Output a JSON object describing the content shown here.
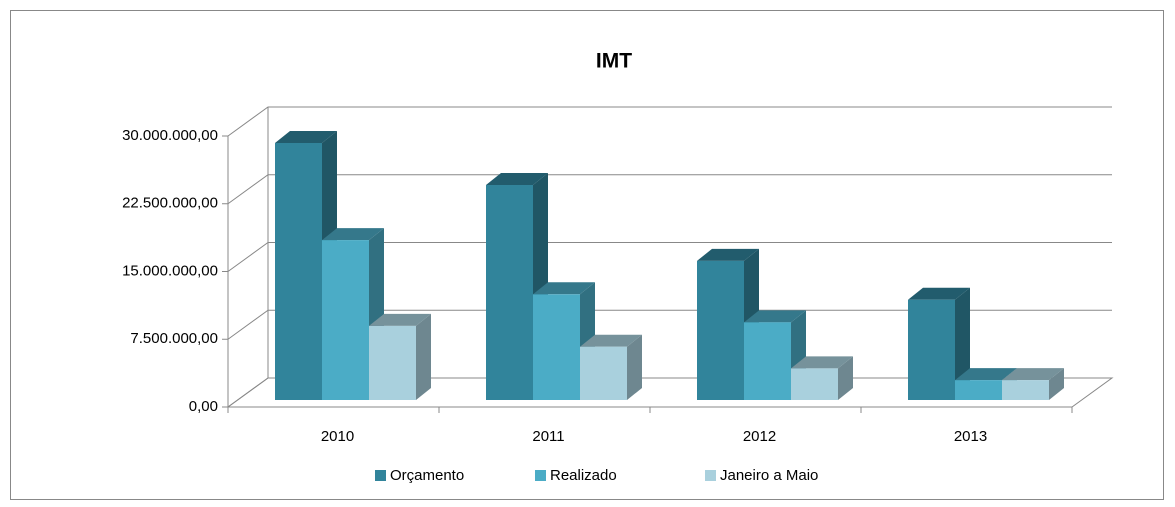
{
  "chart_data": {
    "type": "bar3d",
    "title": "IMT",
    "categories": [
      "2010",
      "2011",
      "2012",
      "2013"
    ],
    "series": [
      {
        "name": "Orçamento",
        "color": "#31849b",
        "values": [
          28450000,
          23800000,
          15400000,
          11100000
        ]
      },
      {
        "name": "Realizado",
        "color": "#4bacc6",
        "values": [
          17700000,
          11700000,
          8600000,
          2200000
        ]
      },
      {
        "name": "Janeiro a Maio",
        "color": "#a9d0dd",
        "values": [
          8200000,
          5900000,
          3500000,
          2200000
        ]
      }
    ],
    "ylim": [
      0,
      30000000
    ],
    "yticks": [
      {
        "value": 0,
        "label": "0,00"
      },
      {
        "value": 7500000,
        "label": "7.500.000,00"
      },
      {
        "value": 15000000,
        "label": "15.000.000,00"
      },
      {
        "value": 22500000,
        "label": "22.500.000,00"
      },
      {
        "value": 30000000,
        "label": "30.000.000,00"
      }
    ],
    "grid": true,
    "legend": "bottom"
  }
}
